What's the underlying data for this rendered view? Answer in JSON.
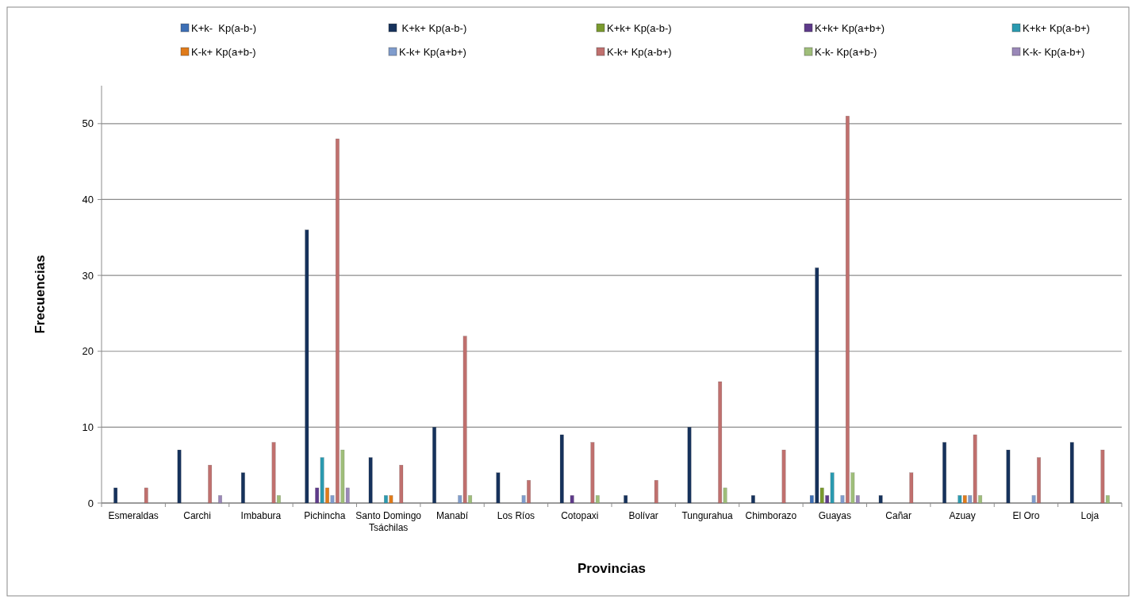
{
  "chart_data": {
    "type": "bar",
    "xlabel": "Provincias",
    "ylabel": "Frecuencias",
    "categories": [
      "Esmeraldas",
      "Carchi",
      "Imbabura",
      "Pichincha",
      "Santo Domingo Tsáchilas",
      "Manabí",
      "Los Ríos",
      "Cotopaxi",
      "Bolívar",
      "Tungurahua",
      "Chimborazo",
      "Guayas",
      "Cañar",
      "Azuay",
      "El Oro",
      "Loja"
    ],
    "series": [
      {
        "name": "K+k-  Kp(a-b-)",
        "color": "#3d6fb5",
        "values": [
          null,
          null,
          null,
          null,
          null,
          null,
          null,
          null,
          null,
          null,
          null,
          1,
          null,
          null,
          null,
          null
        ]
      },
      {
        "name": " K+k+ Kp(a-b-)",
        "color": "#16325c",
        "values": [
          2,
          7,
          4,
          36,
          6,
          10,
          4,
          9,
          1,
          10,
          1,
          31,
          1,
          8,
          7,
          8
        ]
      },
      {
        "name": "K+k+ Kp(a-b-)",
        "color": "#7a9a2e",
        "values": [
          null,
          null,
          null,
          null,
          null,
          null,
          null,
          null,
          null,
          null,
          null,
          2,
          null,
          null,
          null,
          null
        ]
      },
      {
        "name": "K+k+ Kp(a+b+)",
        "color": "#5e3a8a",
        "values": [
          null,
          null,
          null,
          2,
          null,
          null,
          null,
          1,
          null,
          null,
          null,
          1,
          null,
          null,
          null,
          null
        ]
      },
      {
        "name": "K+k+ Kp(a-b+)",
        "color": "#2a9ab0",
        "values": [
          null,
          null,
          null,
          6,
          1,
          null,
          null,
          null,
          null,
          null,
          null,
          4,
          null,
          1,
          null,
          null
        ]
      },
      {
        "name": "K-k+ Kp(a+b-)",
        "color": "#e07b1a",
        "values": [
          null,
          null,
          null,
          2,
          1,
          null,
          null,
          null,
          null,
          null,
          null,
          null,
          null,
          1,
          null,
          null
        ]
      },
      {
        "name": "K-k+ Kp(a+b+)",
        "color": "#7f9ccc",
        "values": [
          null,
          null,
          null,
          1,
          null,
          1,
          1,
          null,
          null,
          null,
          null,
          1,
          null,
          1,
          1,
          null
        ]
      },
      {
        "name": "K-k+ Kp(a-b+)",
        "color": "#c0706e",
        "values": [
          2,
          5,
          8,
          48,
          5,
          22,
          3,
          8,
          3,
          16,
          7,
          51,
          4,
          9,
          6,
          7
        ]
      },
      {
        "name": "K-k- Kp(a+b-)",
        "color": "#9fbe7a",
        "values": [
          null,
          null,
          1,
          7,
          null,
          1,
          null,
          1,
          null,
          2,
          null,
          4,
          null,
          1,
          null,
          1
        ]
      },
      {
        "name": "K-k- Kp(a-b+)",
        "color": "#9a88b8",
        "values": [
          null,
          1,
          null,
          2,
          null,
          null,
          null,
          null,
          null,
          null,
          null,
          1,
          null,
          null,
          null,
          null
        ]
      }
    ],
    "ylim": [
      0,
      55
    ],
    "yticks": [
      0,
      10,
      20,
      30,
      40,
      50
    ],
    "grid": "y",
    "legend": "top"
  }
}
